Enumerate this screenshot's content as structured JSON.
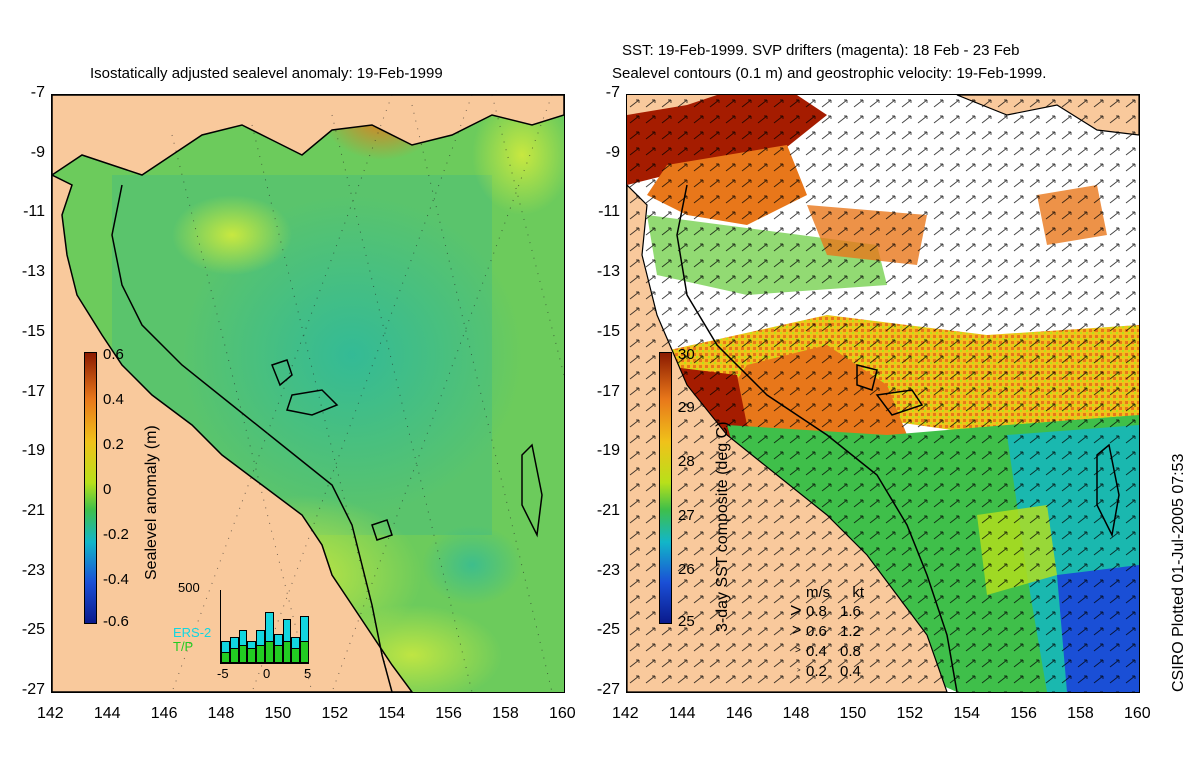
{
  "left_panel": {
    "title": "Isostatically adjusted sealevel anomaly: 19-Feb-1999",
    "colorbar": {
      "label": "Sealevel anomaly (m)",
      "ticks": [
        "0.6",
        "0.4",
        "0.2",
        "0",
        "-0.2",
        "-0.4",
        "-0.6"
      ],
      "colors": [
        "#8b1a00",
        "#e8771a",
        "#f0c21a",
        "#b8e01a",
        "#3fbf4a",
        "#12b6c8",
        "#1a4fd6",
        "#0a1a8c"
      ]
    },
    "inset": {
      "ymax_label": "500",
      "xticks": [
        "-5",
        "0",
        "5"
      ],
      "legend": [
        "ERS-2",
        "T/P"
      ],
      "bars_ers2": [
        0.3,
        0.35,
        0.45,
        0.3,
        0.45,
        0.7,
        0.4,
        0.6,
        0.35,
        0.65
      ],
      "bars_tp": [
        0.15,
        0.2,
        0.25,
        0.2,
        0.25,
        0.3,
        0.25,
        0.3,
        0.2,
        0.3
      ]
    }
  },
  "right_panel": {
    "title_line1": "SST: 19-Feb-1999. SVP drifters (magenta): 18 Feb - 23 Feb",
    "title_line2": "Sealevel contours (0.1 m) and geostrophic velocity: 19-Feb-1999.",
    "colorbar": {
      "label": "3-day SST composite (deg C)",
      "ticks": [
        "30",
        "29",
        "28",
        "27",
        "26",
        "25"
      ],
      "colors": [
        "#8b1a00",
        "#e8771a",
        "#f0c21a",
        "#b8e01a",
        "#3fbf4a",
        "#12b6c8",
        "#1a4fd6",
        "#0a1a8c"
      ]
    },
    "velocity_legend": {
      "header_ms": "m/s",
      "header_kt": "kt",
      "rows": [
        {
          "ms": "0.8",
          "kt": "1.6"
        },
        {
          "ms": "0.6",
          "kt": "1.2"
        },
        {
          "ms": "0.4",
          "kt": "0.8"
        },
        {
          "ms": "0.2",
          "kt": "0.4"
        }
      ]
    }
  },
  "axes": {
    "lat_ticks": [
      "-7",
      "-9",
      "-11",
      "-13",
      "-15",
      "-17",
      "-19",
      "-21",
      "-23",
      "-25",
      "-27"
    ],
    "lon_ticks": [
      "142",
      "144",
      "146",
      "148",
      "150",
      "152",
      "154",
      "156",
      "158",
      "160"
    ]
  },
  "credit": "CSIRO Plotted 01-Jul-2005 07:53",
  "colors": {
    "land": "#f9c99c",
    "ocean_green": "#7fd45a",
    "shelf_teal": "#3cc08a",
    "warm_red": "#a51c00",
    "warm_orange": "#e8771a"
  }
}
